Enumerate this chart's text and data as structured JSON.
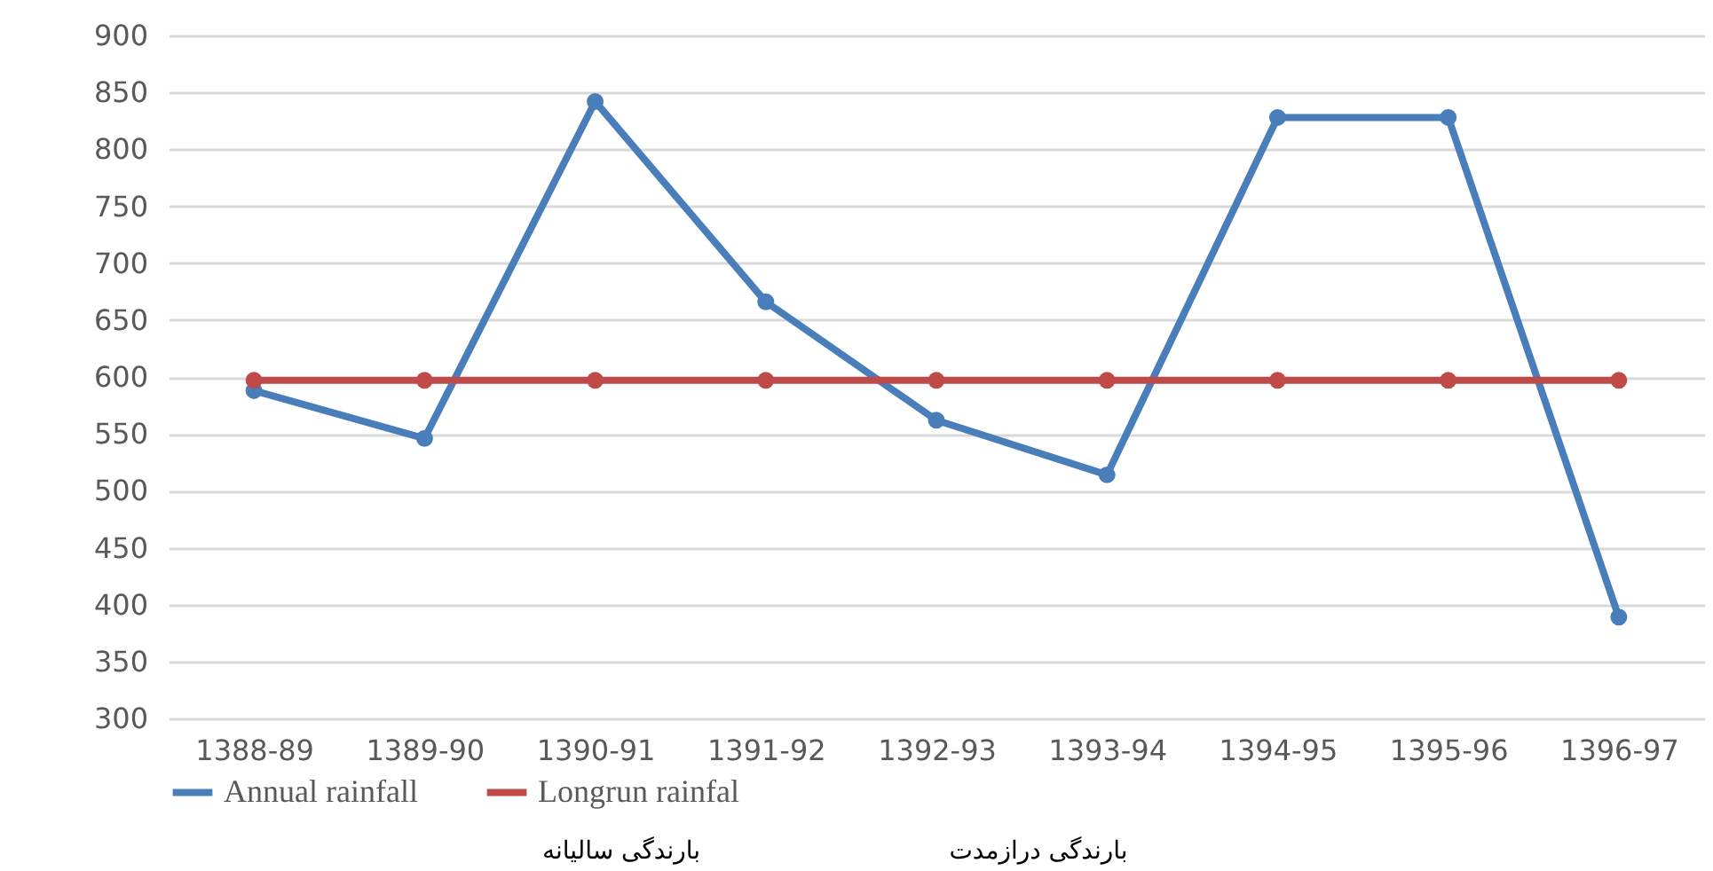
{
  "chart_data": {
    "type": "line",
    "categories": [
      "1388-89",
      "1389-90",
      "1390-91",
      "1391-92",
      "1392-93",
      "1393-94",
      "1394-95",
      "1395-96",
      "1396-97"
    ],
    "series": [
      {
        "name": "Annual rainfall",
        "color": "#4a7ebb",
        "values": [
          588,
          546,
          842,
          666,
          562,
          514,
          828,
          828,
          389
        ]
      },
      {
        "name": "Longrun rainfal",
        "color": "#be4b48",
        "values": [
          597,
          597,
          597,
          597,
          597,
          597,
          597,
          597,
          597
        ]
      }
    ],
    "ylim": [
      300,
      900
    ],
    "yticks": [
      300,
      350,
      400,
      450,
      500,
      550,
      600,
      650,
      700,
      750,
      800,
      850,
      900
    ],
    "grid": "y",
    "legend": "bottom",
    "marker": "circle",
    "annotations": [
      "بارندگی سالیانه",
      "بارندگی درازمدت"
    ]
  }
}
